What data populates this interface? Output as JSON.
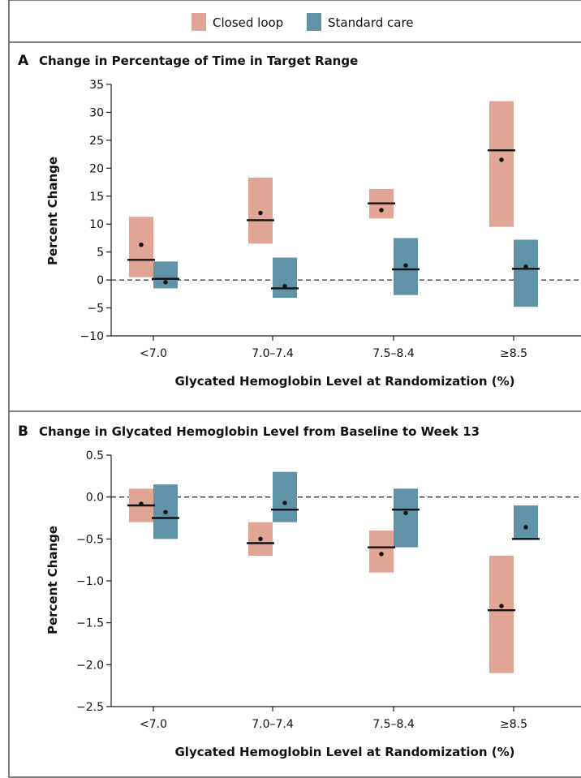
{
  "legend": {
    "items": [
      {
        "label": "Closed loop",
        "color": "#e0a595"
      },
      {
        "label": "Standard care",
        "color": "#5f93a8"
      }
    ]
  },
  "colors": {
    "closed_loop": "#e0a595",
    "standard_care": "#5f93a8",
    "border": "#555555",
    "median_line": "#111111",
    "zero_line": "#333333"
  },
  "chart_data": [
    {
      "panel": "A",
      "type": "box",
      "title": "Change in Percentage of Time in Target Range",
      "xlabel": "Glycated Hemoglobin Level at Randomization (%)",
      "ylabel": "Percent Change",
      "ylim": [
        -10,
        35
      ],
      "yticks": [
        35,
        30,
        25,
        20,
        15,
        10,
        5,
        0,
        -5,
        -10
      ],
      "ytick_labels": [
        "35",
        "30",
        "25",
        "20",
        "15",
        "10",
        "5",
        "0",
        "−5",
        "−10"
      ],
      "zero_line": "dashed",
      "categories": [
        "<7.0",
        "7.0–7.4",
        "7.5–8.4",
        "≥8.5"
      ],
      "series": [
        {
          "name": "Closed loop",
          "q1": [
            0.5,
            6.5,
            11.0,
            9.5
          ],
          "median": [
            3.6,
            10.7,
            13.7,
            23.2
          ],
          "q3": [
            11.3,
            18.3,
            16.3,
            32.0
          ],
          "mean": [
            6.3,
            12.0,
            12.5,
            21.5
          ]
        },
        {
          "name": "Standard care",
          "q1": [
            -1.5,
            -3.2,
            -2.7,
            -4.8
          ],
          "median": [
            0.2,
            -1.5,
            1.9,
            2.0
          ],
          "q3": [
            3.3,
            4.0,
            7.5,
            7.2
          ],
          "mean": [
            -0.4,
            -1.1,
            2.6,
            2.4
          ]
        }
      ]
    },
    {
      "panel": "B",
      "type": "box",
      "title": "Change in Glycated Hemoglobin Level from Baseline to Week 13",
      "xlabel": "Glycated Hemoglobin Level at Randomization (%)",
      "ylabel": "Percent Change",
      "ylim": [
        -2.5,
        0.5
      ],
      "yticks": [
        0.5,
        0,
        -0.5,
        -1,
        -1.5,
        -2,
        -2.5
      ],
      "ytick_labels": [
        "0.5",
        "0.0",
        "−0.5",
        "−1.0",
        "−1.5",
        "−2.0",
        "−2.5"
      ],
      "zero_line": "dashed",
      "categories": [
        "<7.0",
        "7.0–7.4",
        "7.5–8.4",
        "≥8.5"
      ],
      "series": [
        {
          "name": "Closed loop",
          "q1": [
            -0.3,
            -0.7,
            -0.9,
            -2.1
          ],
          "median": [
            -0.1,
            -0.55,
            -0.6,
            -1.35
          ],
          "q3": [
            0.1,
            -0.3,
            -0.4,
            -0.7
          ],
          "mean": [
            -0.08,
            -0.5,
            -0.68,
            -1.3
          ]
        },
        {
          "name": "Standard care",
          "q1": [
            -0.5,
            -0.3,
            -0.6,
            -0.5
          ],
          "median": [
            -0.25,
            -0.15,
            -0.15,
            -0.5
          ],
          "q3": [
            0.15,
            0.3,
            0.1,
            -0.1
          ],
          "mean": [
            -0.18,
            -0.07,
            -0.19,
            -0.36
          ]
        }
      ]
    }
  ]
}
